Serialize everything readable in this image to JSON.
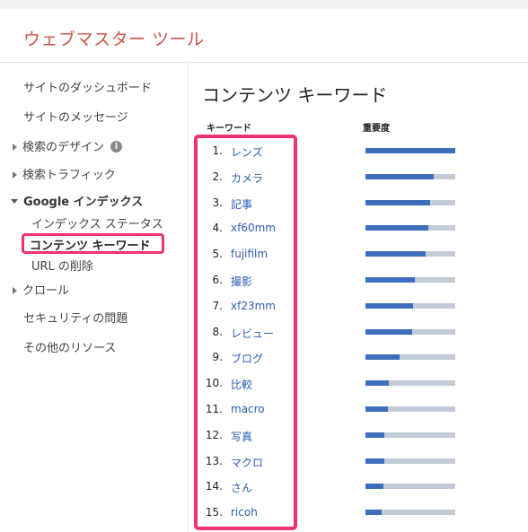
{
  "header": {
    "title": "ウェブマスター ツール"
  },
  "sidebar": {
    "items": [
      {
        "label": "サイトのダッシュボード"
      },
      {
        "label": "サイトのメッセージ"
      },
      {
        "label": "検索のデザイン"
      },
      {
        "label": "検索トラフィック"
      },
      {
        "label": "Google インデックス"
      },
      {
        "label": "インデックス ステータス"
      },
      {
        "label": "コンテンツ キーワード"
      },
      {
        "label": "URL の削除"
      },
      {
        "label": "クロール"
      },
      {
        "label": "セキュリティの問題"
      },
      {
        "label": "その他のリソース"
      }
    ]
  },
  "main": {
    "title": "コンテンツ キーワード",
    "col_keyword": "キーワード",
    "col_importance": "重要度",
    "rows": [
      {
        "num": "1.",
        "keyword": "レンズ",
        "importance": 1.0
      },
      {
        "num": "2.",
        "keyword": "カメラ",
        "importance": 0.76
      },
      {
        "num": "3.",
        "keyword": "記事",
        "importance": 0.72
      },
      {
        "num": "4.",
        "keyword": "xf60mm",
        "importance": 0.7
      },
      {
        "num": "5.",
        "keyword": "fujifilm",
        "importance": 0.67
      },
      {
        "num": "6.",
        "keyword": "撮影",
        "importance": 0.55
      },
      {
        "num": "7.",
        "keyword": "xf23mm",
        "importance": 0.53
      },
      {
        "num": "8.",
        "keyword": "レビュー",
        "importance": 0.52
      },
      {
        "num": "9.",
        "keyword": "ブログ",
        "importance": 0.38
      },
      {
        "num": "10.",
        "keyword": "比較",
        "importance": 0.26
      },
      {
        "num": "11.",
        "keyword": "macro",
        "importance": 0.25
      },
      {
        "num": "12.",
        "keyword": "写真",
        "importance": 0.21
      },
      {
        "num": "13.",
        "keyword": "マクロ",
        "importance": 0.21
      },
      {
        "num": "14.",
        "keyword": "さん",
        "importance": 0.2
      },
      {
        "num": "15.",
        "keyword": "ricoh",
        "importance": 0.18
      }
    ]
  },
  "colors": {
    "accent": "#c8554a",
    "link": "#2a5db0",
    "bar": "#3d6fbd",
    "bar_bg": "#c3cbd8",
    "highlight": "#f0326d"
  }
}
